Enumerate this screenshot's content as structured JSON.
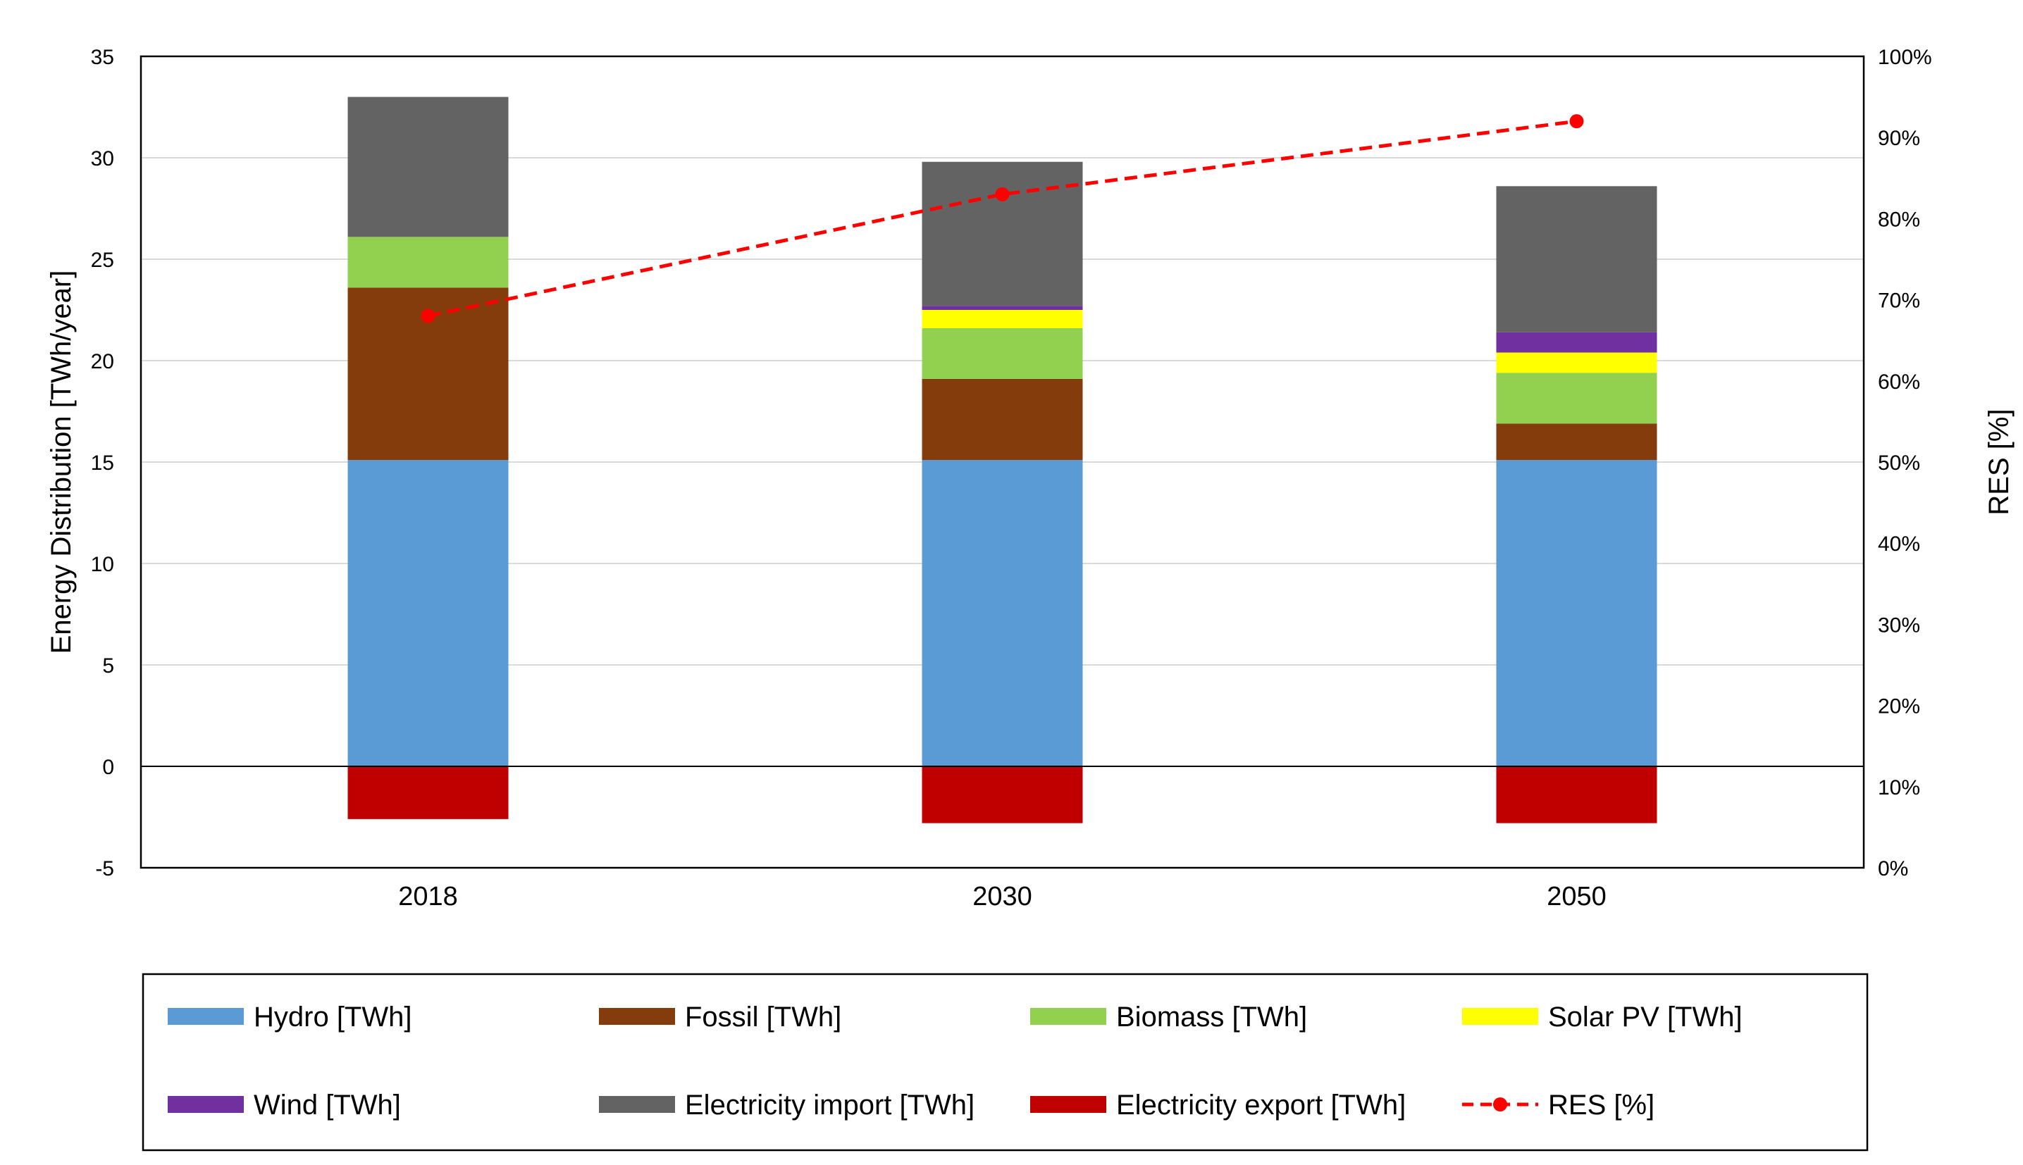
{
  "chart_data": {
    "type": "bar",
    "stacked": true,
    "categories": [
      "2018",
      "2030",
      "2050"
    ],
    "series": [
      {
        "name": "Hydro [TWh]",
        "color": "#5b9bd5",
        "values": [
          15.1,
          15.1,
          15.1
        ]
      },
      {
        "name": "Fossil [TWh]",
        "color": "#843c0c",
        "values": [
          8.5,
          4.0,
          1.8
        ]
      },
      {
        "name": "Biomass [TWh]",
        "color": "#92d050",
        "values": [
          2.5,
          2.5,
          2.5
        ]
      },
      {
        "name": "Solar PV [TWh]",
        "color": "#ffff00",
        "values": [
          0.0,
          0.9,
          1.0
        ]
      },
      {
        "name": "Wind [TWh]",
        "color": "#7030a0",
        "values": [
          0.0,
          0.2,
          1.0
        ]
      },
      {
        "name": "Electricity import [TWh]",
        "color": "#636363",
        "values": [
          6.9,
          7.1,
          7.2
        ]
      },
      {
        "name": "Electricity export [TWh]",
        "color": "#c00000",
        "values": [
          -2.6,
          -2.8,
          -2.8
        ]
      }
    ],
    "line_series": {
      "name": "RES [%]",
      "color": "#ff0000",
      "axis": "secondary",
      "values": [
        68,
        83,
        92
      ]
    },
    "ylabel": "Energy Distribution [TWh/year]",
    "ylim": [
      -5,
      35
    ],
    "yticks": [
      -5,
      0,
      5,
      10,
      15,
      20,
      25,
      30,
      35
    ],
    "y2label": "RES [%]",
    "y2lim": [
      0,
      100
    ],
    "y2ticks": [
      "0%",
      "10%",
      "20%",
      "30%",
      "40%",
      "50%",
      "60%",
      "70%",
      "80%",
      "90%",
      "100%"
    ],
    "grid": true,
    "legend_position": "bottom"
  }
}
